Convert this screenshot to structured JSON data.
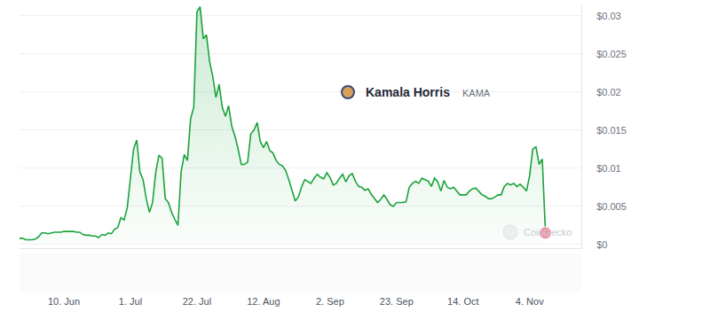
{
  "chart_data": {
    "type": "line",
    "title": "Kamala Horris",
    "subtitle": "KAMA",
    "annotations": [
      {
        "text": "CoinGecko"
      }
    ],
    "color": "#1aa33b",
    "grid": true,
    "categories": [
      null,
      null,
      null,
      null,
      null,
      null,
      null,
      null,
      null,
      null,
      null,
      null,
      null,
      null,
      "10. Jun",
      null,
      null,
      null,
      null,
      null,
      null,
      null,
      null,
      null,
      null,
      null,
      null,
      null,
      null,
      null,
      null,
      null,
      null,
      null,
      null,
      "1. Jul",
      null,
      null,
      null,
      null,
      null,
      null,
      null,
      null,
      null,
      null,
      null,
      null,
      null,
      null,
      null,
      null,
      null,
      null,
      null,
      null,
      "22. Jul",
      null,
      null,
      null,
      null,
      null,
      null,
      null,
      null,
      null,
      null,
      null,
      null,
      null,
      null,
      null,
      null,
      null,
      null,
      null,
      null,
      "12. Aug",
      null,
      null,
      null,
      null,
      null,
      null,
      null,
      null,
      null,
      null,
      null,
      null,
      null,
      null,
      null,
      null,
      null,
      null,
      null,
      null,
      "2. Sep",
      null,
      null,
      null,
      null,
      null,
      null,
      null,
      null,
      null,
      null,
      null,
      null,
      null,
      null,
      null,
      null,
      null,
      null,
      null,
      null,
      "23. Sep",
      null,
      null,
      null,
      null,
      null,
      null,
      null,
      null,
      null,
      null,
      null,
      null,
      null,
      null,
      null,
      null,
      null,
      null,
      null,
      null,
      "14. Oct",
      null,
      null,
      null,
      null,
      null,
      null,
      null,
      null,
      null,
      null,
      null,
      null,
      null,
      null,
      null,
      null,
      null,
      null,
      null,
      null,
      "4. Nov",
      null,
      null,
      null,
      null,
      null
    ],
    "values": [
      0.0008,
      0.0008,
      0.0006,
      0.0006,
      0.0006,
      0.0007,
      0.001,
      0.0015,
      0.0015,
      0.0014,
      0.0015,
      0.0016,
      0.0016,
      0.0016,
      0.0017,
      0.0017,
      0.0017,
      0.0017,
      0.0016,
      0.0016,
      0.0013,
      0.0012,
      0.0012,
      0.0011,
      0.0011,
      0.0009,
      0.0013,
      0.0012,
      0.0015,
      0.0014,
      0.002,
      0.0022,
      0.0035,
      0.0032,
      0.0048,
      0.0085,
      0.0125,
      0.0137,
      0.0095,
      0.0085,
      0.006,
      0.0042,
      0.0055,
      0.0095,
      0.0117,
      0.0113,
      0.006,
      0.0055,
      0.0042,
      0.0033,
      0.0025,
      0.0095,
      0.0118,
      0.011,
      0.0165,
      0.018,
      0.0305,
      0.0312,
      0.027,
      0.0275,
      0.024,
      0.022,
      0.0193,
      0.021,
      0.018,
      0.0168,
      0.0182,
      0.0155,
      0.0142,
      0.0125,
      0.0105,
      0.0105,
      0.0108,
      0.0145,
      0.015,
      0.016,
      0.0135,
      0.0127,
      0.0135,
      0.0123,
      0.012,
      0.011,
      0.0105,
      0.0103,
      0.0097,
      0.0085,
      0.0072,
      0.0057,
      0.0062,
      0.0075,
      0.0085,
      0.0082,
      0.008,
      0.0087,
      0.0092,
      0.0088,
      0.0086,
      0.0094,
      0.0088,
      0.0078,
      0.008,
      0.0087,
      0.0092,
      0.0082,
      0.009,
      0.0093,
      0.0083,
      0.0076,
      0.0075,
      0.0071,
      0.0073,
      0.0066,
      0.006,
      0.0055,
      0.0059,
      0.0065,
      0.0059,
      0.0052,
      0.005,
      0.0055,
      0.0055,
      0.0055,
      0.0056,
      0.0075,
      0.008,
      0.0083,
      0.008,
      0.0087,
      0.0085,
      0.0083,
      0.0076,
      0.0087,
      0.0082,
      0.007,
      0.0084,
      0.0075,
      0.0073,
      0.0075,
      0.007,
      0.0065,
      0.0065,
      0.0065,
      0.007,
      0.0073,
      0.0074,
      0.007,
      0.0065,
      0.0063,
      0.006,
      0.006,
      0.0062,
      0.0065,
      0.0065,
      0.0076,
      0.008,
      0.0078,
      0.008,
      0.0076,
      0.0079,
      0.0075,
      0.007,
      0.009,
      0.0125,
      0.0128,
      0.0105,
      0.0112,
      0.0015
    ],
    "ylim": [
      -0.0005,
      0.0315
    ],
    "yticks": [
      {
        "value": 0,
        "label": "$0"
      },
      {
        "value": 0.005,
        "label": "$0.005"
      },
      {
        "value": 0.01,
        "label": "$0.01"
      },
      {
        "value": 0.015,
        "label": "$0.015"
      },
      {
        "value": 0.02,
        "label": "$0.02"
      },
      {
        "value": 0.025,
        "label": "$0.025"
      },
      {
        "value": 0.03,
        "label": "$0.03"
      }
    ]
  }
}
